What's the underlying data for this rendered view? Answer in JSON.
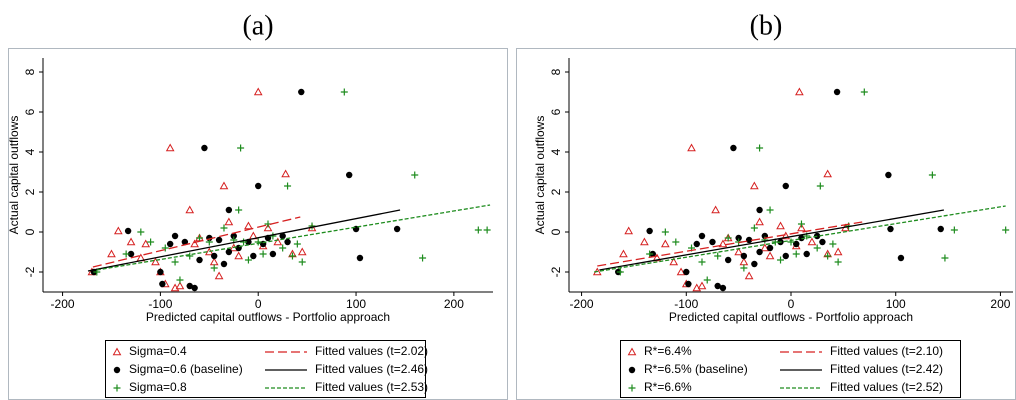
{
  "chart_data": [
    {
      "type": "scatter",
      "title": "(a)",
      "x_label": "Predicted capital outflows - Portfolio approach",
      "y_label": "Actual capital outflows",
      "xlim": [
        -220,
        240
      ],
      "ylim": [
        -3,
        8.7
      ],
      "xticks": [
        -200,
        -100,
        0,
        100,
        200
      ],
      "yticks": [
        -2,
        0,
        2,
        4,
        6,
        8
      ],
      "series": [
        {
          "name": "Sigma=0.4",
          "kind": "scatter",
          "marker": "triangle",
          "color": "#d62020",
          "x": [
            -143,
            -150,
            -170,
            -130,
            -105,
            -100,
            -95,
            -85,
            -80,
            -70,
            -65,
            -60,
            -50,
            -45,
            -40,
            -30,
            -25,
            -20,
            -10,
            -5,
            5,
            10,
            20,
            35,
            45,
            55,
            0,
            -90,
            28,
            -35,
            -120,
            -115
          ],
          "values": [
            0.05,
            -1.1,
            -2.0,
            -0.5,
            -1.5,
            -2.0,
            -2.6,
            -2.8,
            -2.7,
            1.1,
            -0.6,
            -0.3,
            -1.0,
            -1.5,
            -2.2,
            0.5,
            -0.8,
            -1.2,
            0.3,
            -0.2,
            -0.7,
            0.2,
            -0.5,
            -1.1,
            -1.0,
            0.2,
            7.0,
            4.2,
            2.9,
            2.3,
            -1.3,
            -0.6
          ]
        },
        {
          "name": "Sigma=0.6 (baseline)",
          "kind": "scatter",
          "marker": "circle",
          "color": "#000000",
          "x": [
            -168,
            -133,
            -130,
            -100,
            -98,
            -90,
            -85,
            -75,
            -70,
            -65,
            -60,
            -55,
            -50,
            -45,
            -40,
            -35,
            -30,
            -25,
            -20,
            -10,
            -5,
            0,
            5,
            10,
            15,
            25,
            30,
            44,
            93,
            100,
            104,
            142,
            -30
          ],
          "values": [
            -2.0,
            0.05,
            -1.1,
            -2.0,
            -2.6,
            -0.6,
            -0.2,
            -0.5,
            -2.7,
            -2.8,
            -1.4,
            4.2,
            -0.3,
            -1.2,
            -0.4,
            -1.6,
            -1.0,
            -0.2,
            -0.8,
            -0.5,
            -1.2,
            2.3,
            -0.6,
            -0.3,
            -1.1,
            -0.2,
            -0.5,
            7.0,
            2.85,
            0.15,
            -1.3,
            0.15,
            1.1
          ]
        },
        {
          "name": "Sigma=0.8",
          "kind": "scatter",
          "marker": "plus",
          "color": "#1e8c1e",
          "x": [
            -165,
            -135,
            -120,
            -110,
            -95,
            -85,
            -80,
            -70,
            -60,
            -50,
            -45,
            -35,
            -25,
            -20,
            -18,
            -15,
            -10,
            0,
            5,
            10,
            15,
            25,
            30,
            35,
            40,
            45,
            55,
            88,
            160,
            168,
            225,
            234
          ],
          "values": [
            -2.0,
            -1.1,
            0.0,
            -0.5,
            -0.8,
            -1.5,
            -2.4,
            -1.2,
            -0.3,
            -0.5,
            -1.8,
            0.2,
            -0.4,
            1.1,
            4.2,
            -0.5,
            -1.4,
            -0.5,
            -1.1,
            0.4,
            -0.2,
            -0.8,
            2.3,
            -1.2,
            -0.6,
            -1.5,
            0.3,
            7.0,
            2.85,
            -1.3,
            0.1,
            0.1
          ]
        },
        {
          "name": "Fitted values (t=2.02)",
          "kind": "line",
          "dash": "long",
          "color": "#d62020",
          "x": [
            -169,
            43
          ],
          "values": [
            -1.75,
            0.75
          ]
        },
        {
          "name": "Fitted values (t=2.46)",
          "kind": "line",
          "dash": "solid",
          "color": "#000000",
          "x": [
            -174,
            145
          ],
          "values": [
            -1.95,
            1.1
          ]
        },
        {
          "name": "Fitted values (t=2.53)",
          "kind": "line",
          "dash": "short",
          "color": "#1e8c1e",
          "x": [
            -165,
            237
          ],
          "values": [
            -1.9,
            1.35
          ]
        }
      ]
    },
    {
      "type": "scatter",
      "title": "(b)",
      "x_label": "Predicted capital outflows - Portfolio approach",
      "y_label": "Actual capital outflows",
      "xlim": [
        -212,
        212
      ],
      "ylim": [
        -3,
        8.7
      ],
      "xticks": [
        -200,
        -100,
        0,
        100,
        200
      ],
      "yticks": [
        -2,
        0,
        2,
        4,
        6,
        8
      ],
      "series": [
        {
          "name": "R*=6.4%",
          "kind": "scatter",
          "marker": "triangle",
          "color": "#d62020",
          "x": [
            -155,
            -160,
            -185,
            -140,
            -112,
            -105,
            -100,
            -90,
            -85,
            -72,
            -65,
            -60,
            -50,
            -45,
            -40,
            -30,
            -25,
            -20,
            -10,
            -5,
            5,
            10,
            20,
            35,
            45,
            52,
            8,
            -95,
            35,
            -35,
            -128,
            -120
          ],
          "values": [
            0.05,
            -1.1,
            -2.0,
            -0.5,
            -1.5,
            -2.0,
            -2.6,
            -2.8,
            -2.7,
            1.1,
            -0.6,
            -0.3,
            -1.0,
            -1.5,
            -2.2,
            0.5,
            -0.8,
            -1.2,
            0.3,
            -0.2,
            -0.7,
            0.2,
            -0.5,
            -1.1,
            -1.0,
            0.2,
            7.0,
            4.2,
            2.9,
            2.3,
            -1.3,
            -0.6
          ]
        },
        {
          "name": "R*=6.5% (baseline)",
          "kind": "scatter",
          "marker": "circle",
          "color": "#000000",
          "x": [
            -165,
            -135,
            -132,
            -100,
            -98,
            -90,
            -85,
            -75,
            -70,
            -65,
            -60,
            -55,
            -50,
            -45,
            -40,
            -35,
            -30,
            -25,
            -20,
            -10,
            -5,
            -5,
            5,
            10,
            15,
            25,
            30,
            44,
            93,
            95,
            105,
            143,
            -30
          ],
          "values": [
            -2.0,
            0.05,
            -1.1,
            -2.0,
            -2.6,
            -0.6,
            -0.2,
            -0.5,
            -2.7,
            -2.8,
            -1.4,
            4.2,
            -0.3,
            -1.2,
            -0.4,
            -1.6,
            -1.0,
            -0.2,
            -0.8,
            -0.5,
            -1.2,
            2.3,
            -0.6,
            -0.3,
            -1.1,
            -0.2,
            -0.5,
            7.0,
            2.85,
            0.15,
            -1.3,
            0.15,
            1.1
          ]
        },
        {
          "name": "R*=6.6%",
          "kind": "scatter",
          "marker": "plus",
          "color": "#1e8c1e",
          "x": [
            -163,
            -135,
            -120,
            -110,
            -95,
            -85,
            -80,
            -70,
            -60,
            -50,
            -45,
            -35,
            -25,
            -20,
            -30,
            -15,
            -10,
            0,
            5,
            10,
            15,
            25,
            28,
            35,
            40,
            45,
            55,
            70,
            135,
            147,
            156,
            205
          ],
          "values": [
            -2.0,
            -1.1,
            0.0,
            -0.5,
            -0.8,
            -1.5,
            -2.4,
            -1.2,
            -0.3,
            -0.5,
            -1.8,
            0.2,
            -0.4,
            1.1,
            4.2,
            -0.5,
            -1.4,
            -0.5,
            -1.1,
            0.4,
            -0.2,
            -0.8,
            2.3,
            -1.2,
            -0.6,
            -1.5,
            0.3,
            7.0,
            2.85,
            -1.3,
            0.1,
            0.1
          ]
        },
        {
          "name": "Fitted values (t=2.10)",
          "kind": "line",
          "dash": "long",
          "color": "#d62020",
          "x": [
            -185,
            68
          ],
          "values": [
            -1.7,
            0.5
          ]
        },
        {
          "name": "Fitted values (t=2.42)",
          "kind": "line",
          "dash": "solid",
          "color": "#000000",
          "x": [
            -183,
            146
          ],
          "values": [
            -1.9,
            1.1
          ]
        },
        {
          "name": "Fitted values (t=2.52)",
          "kind": "line",
          "dash": "short",
          "color": "#1e8c1e",
          "x": [
            -188,
            205
          ],
          "values": [
            -2.0,
            1.3
          ]
        }
      ]
    }
  ]
}
